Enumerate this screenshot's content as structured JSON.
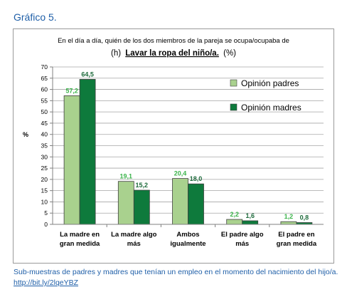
{
  "heading": "Gráfico 5.",
  "footnote": {
    "text": "Sub-muestras de padres y madres que tenían un empleo en el momento del nacimiento del hijo/a.",
    "link": "http://bit.ly/2lqeYBZ"
  },
  "chart_data": {
    "type": "bar",
    "title_line1": "En el día a día, quién de los dos miembros de la pareja se ocupa/ocupaba de",
    "title_prefix": "(h)",
    "title_emphasis": "Lavar la ropa del niño/a.",
    "title_suffix": "(%)",
    "ylabel": "%",
    "ylim": [
      0,
      70
    ],
    "yticks": [
      0,
      5,
      10,
      15,
      20,
      25,
      30,
      35,
      40,
      45,
      50,
      55,
      60,
      65,
      70
    ],
    "grid": true,
    "legend_position": "top-right",
    "categories": [
      [
        "La madre en",
        "gran medida"
      ],
      [
        "La madre algo",
        "más"
      ],
      [
        "Ambos",
        "igualmente"
      ],
      [
        "El padre algo",
        "más"
      ],
      [
        "El padre en",
        "gran medida"
      ]
    ],
    "series": [
      {
        "name": "Opinión padres",
        "color": "#a9d18e",
        "label_color": "#3cb44b",
        "values": [
          57.2,
          19.1,
          20.4,
          2.2,
          1.2
        ],
        "labels": [
          "57,2",
          "19,1",
          "20,4",
          "2,2",
          "1,2"
        ]
      },
      {
        "name": "Opinión madres",
        "color": "#0e7a3c",
        "label_color": "#1e6b3c",
        "values": [
          64.5,
          15.2,
          18.0,
          1.6,
          0.8
        ],
        "labels": [
          "64,5",
          "15,2",
          "18,0",
          "1,6",
          "0,8"
        ]
      }
    ]
  }
}
